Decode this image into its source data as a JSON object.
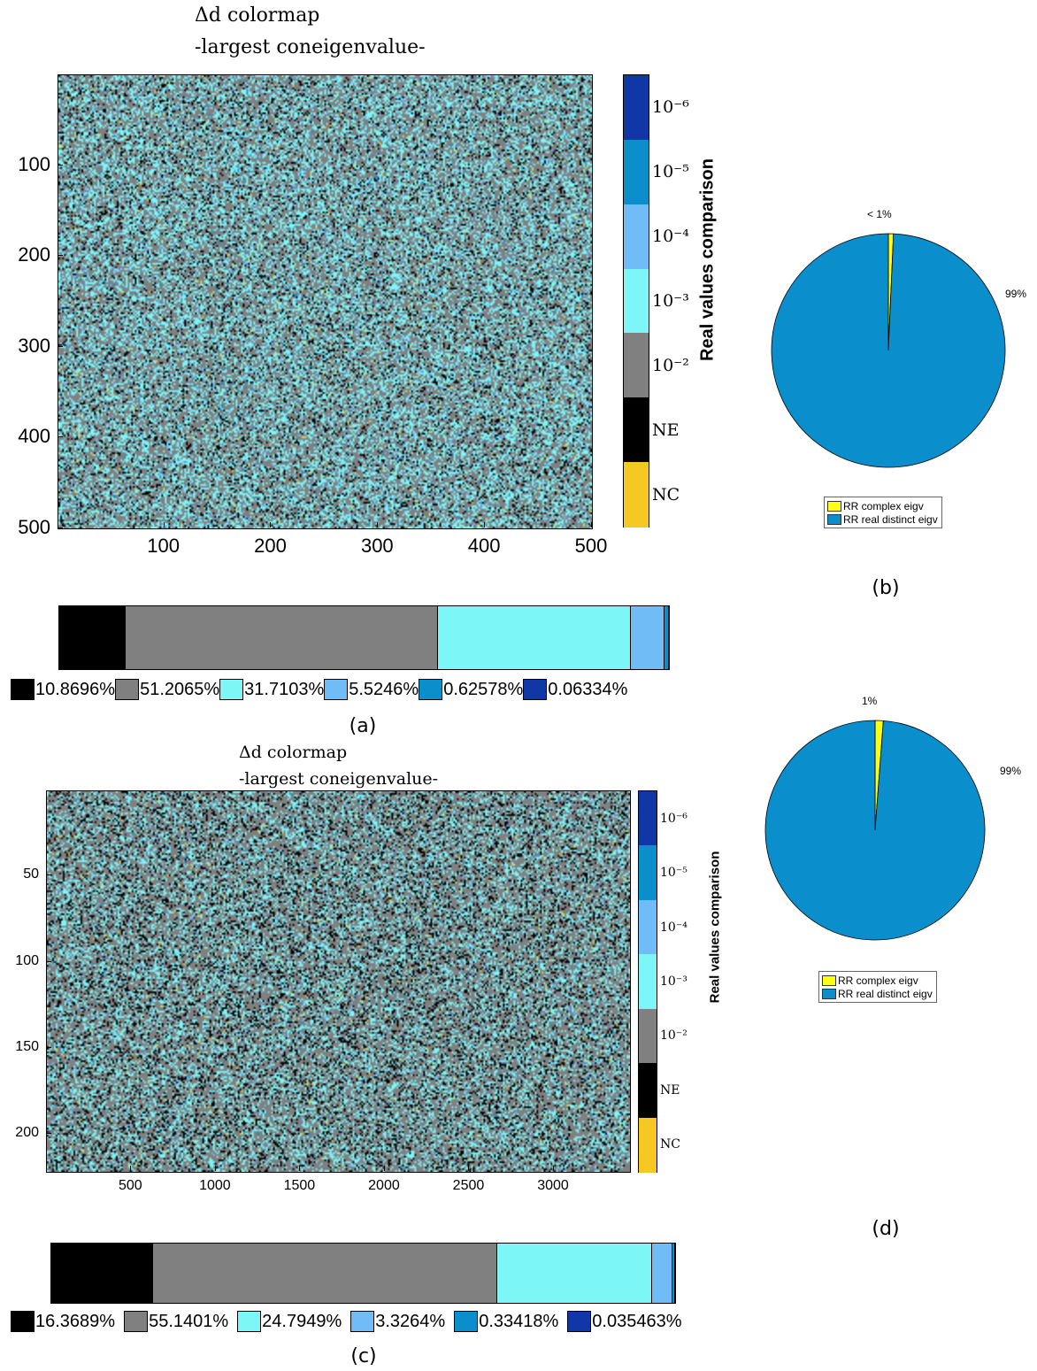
{
  "colors": {
    "NC": "#f7c724",
    "NE": "#000000",
    "e-2": "#808080",
    "e-3": "#7df6f8",
    "e-4": "#6fbcf6",
    "e-5": "#0a8fcc",
    "e-6": "#1136a6",
    "pie_complex": "#ffff12",
    "pie_real": "#0a8fcc"
  },
  "panel_a": {
    "title_line1": "Δd colormap",
    "title_line2": "-largest coneigenvalue-",
    "colorbar_title": "Real values comparison",
    "colorbar_labels": [
      "10⁻⁶",
      "10⁻⁵",
      "10⁻⁴",
      "10⁻³",
      "10⁻²",
      "NE",
      "NC"
    ],
    "caption": "(a)",
    "legend": [
      "10.8696%",
      "51.2065%",
      "31.7103%",
      "5.5246%",
      "0.62578%",
      "0.06334%"
    ]
  },
  "panel_b": {
    "label_small": "< 1%",
    "label_large": "99%",
    "legend_complex": "RR complex eigv",
    "legend_real": "RR real distinct eigv",
    "caption": "(b)"
  },
  "panel_c": {
    "title_line1": "Δd colormap",
    "title_line2": "-largest coneigenvalue-",
    "colorbar_title": "Real values comparison",
    "colorbar_labels": [
      "10⁻⁶",
      "10⁻⁵",
      "10⁻⁴",
      "10⁻³",
      "10⁻²",
      "NE",
      "NC"
    ],
    "caption": "(c)",
    "legend": [
      "16.3689%",
      "55.1401%",
      "24.7949%",
      "3.3264%",
      "0.33418%",
      "0.035463%"
    ]
  },
  "panel_d": {
    "label_small": "1%",
    "label_large": "99%",
    "legend_complex": "RR complex eigv",
    "legend_real": "RR real distinct eigv",
    "caption": "(d)"
  },
  "chart_data": [
    {
      "type": "heatmap",
      "panel": "a",
      "title": "Δd colormap -largest coneigenvalue-",
      "xlim": [
        1,
        500
      ],
      "ylim": [
        1,
        500
      ],
      "y_reversed": true,
      "xticks": [
        100,
        200,
        300,
        400,
        500
      ],
      "yticks": [
        100,
        200,
        300,
        400,
        500
      ],
      "colorbar": {
        "title": "Real values comparison",
        "categories": [
          "NC",
          "NE",
          "10⁻²",
          "10⁻³",
          "10⁻⁴",
          "10⁻⁵",
          "10⁻⁶"
        ]
      }
    },
    {
      "type": "bar",
      "panel": "a",
      "orientation": "horizontal-stacked",
      "categories": [
        "NE",
        "10⁻²",
        "10⁻³",
        "10⁻⁴",
        "10⁻⁵",
        "10⁻⁶"
      ],
      "values": [
        10.8696,
        51.2065,
        31.7103,
        5.5246,
        0.62578,
        0.06334
      ]
    },
    {
      "type": "pie",
      "panel": "b",
      "categories": [
        "RR complex eigv",
        "RR real distinct eigv"
      ],
      "values": [
        0.7,
        99.3
      ],
      "labels": [
        "< 1%",
        "99%"
      ]
    },
    {
      "type": "heatmap",
      "panel": "c",
      "title": "Δd colormap -largest coneigenvalue-",
      "xlim": [
        1,
        3450
      ],
      "ylim": [
        1,
        222
      ],
      "y_reversed": true,
      "xticks": [
        500,
        1000,
        1500,
        2000,
        2500,
        3000
      ],
      "yticks": [
        50,
        100,
        150,
        200
      ],
      "colorbar": {
        "title": "Real values comparison",
        "categories": [
          "NC",
          "NE",
          "10⁻²",
          "10⁻³",
          "10⁻⁴",
          "10⁻⁵",
          "10⁻⁶"
        ]
      }
    },
    {
      "type": "bar",
      "panel": "c",
      "orientation": "horizontal-stacked",
      "categories": [
        "NE",
        "10⁻²",
        "10⁻³",
        "10⁻⁴",
        "10⁻⁵",
        "10⁻⁶"
      ],
      "values": [
        16.3689,
        55.1401,
        24.7949,
        3.3264,
        0.33418,
        0.035463
      ]
    },
    {
      "type": "pie",
      "panel": "d",
      "categories": [
        "RR complex eigv",
        "RR real distinct eigv"
      ],
      "values": [
        1.2,
        98.8
      ],
      "labels": [
        "1%",
        "99%"
      ]
    }
  ]
}
